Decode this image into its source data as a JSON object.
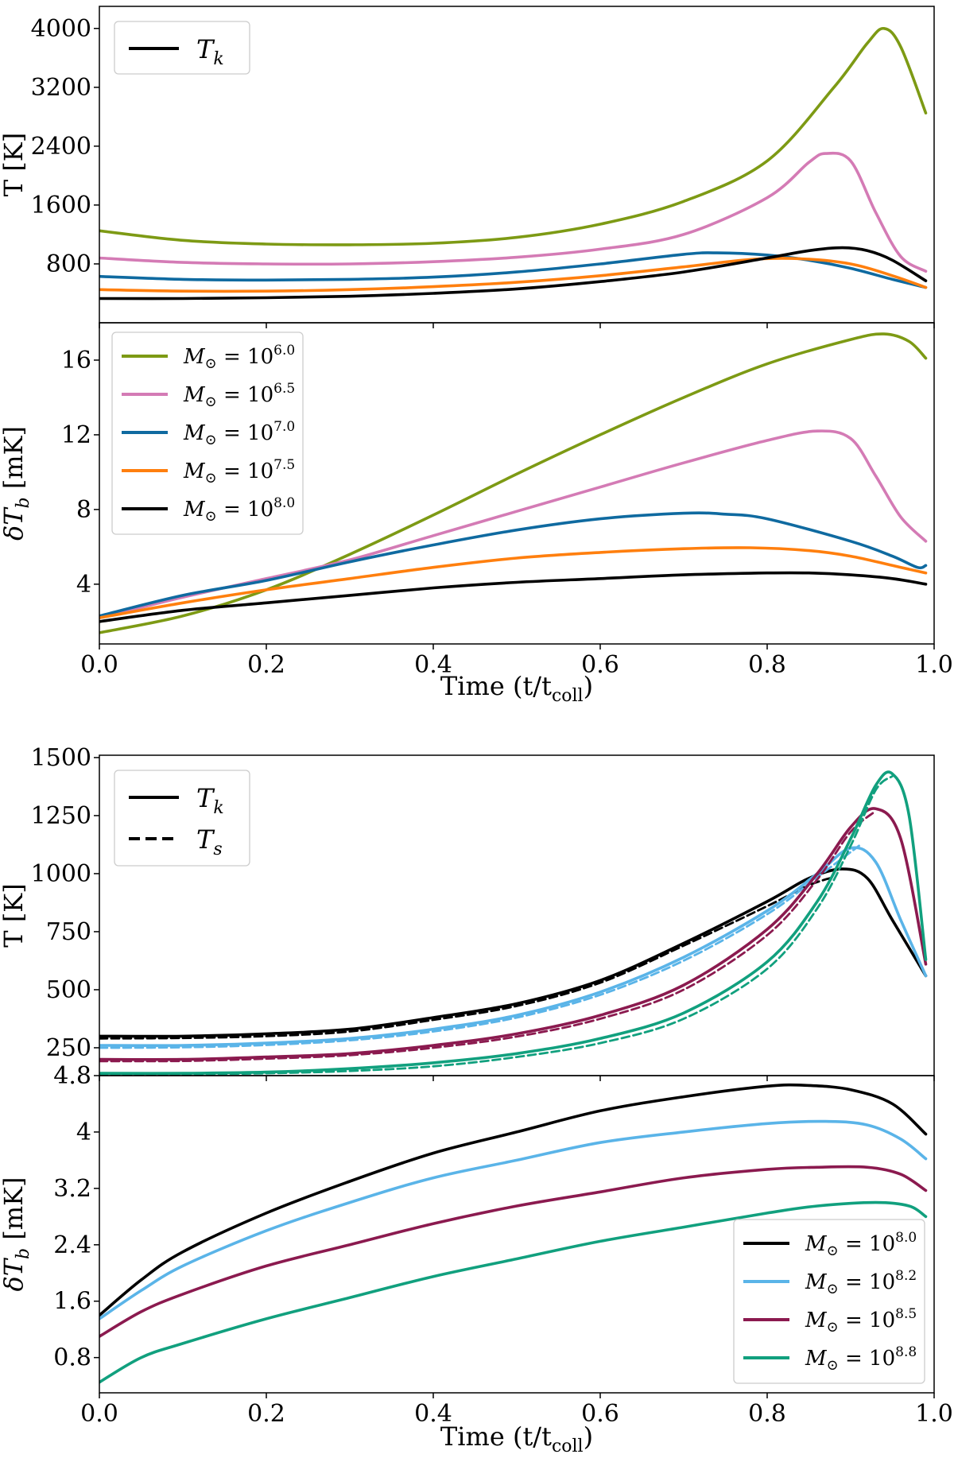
{
  "chart_data": [
    {
      "type": "line",
      "panel": "figure-1-top",
      "ylabel": "T [K]",
      "ylim": [
        0,
        4300
      ],
      "yticks": [
        800,
        1600,
        2400,
        3200,
        4000
      ],
      "xlim": [
        0,
        1
      ],
      "legend": {
        "position": "top-left",
        "entries": [
          {
            "label": "T",
            "subscript": "k",
            "style": "solid"
          }
        ]
      },
      "series": [
        {
          "name": "M⊙ = 10^6.0",
          "color": "#7d9a14",
          "x": [
            0,
            0.1,
            0.2,
            0.3,
            0.4,
            0.5,
            0.6,
            0.7,
            0.8,
            0.88,
            0.92,
            0.94,
            0.96,
            0.99
          ],
          "values": [
            1250,
            1120,
            1070,
            1060,
            1080,
            1160,
            1340,
            1650,
            2200,
            3200,
            3800,
            4000,
            3750,
            2850
          ]
        },
        {
          "name": "M⊙ = 10^6.5",
          "color": "#d47bb5",
          "x": [
            0,
            0.1,
            0.2,
            0.3,
            0.4,
            0.5,
            0.6,
            0.7,
            0.8,
            0.85,
            0.87,
            0.9,
            0.93,
            0.96,
            0.99
          ],
          "values": [
            880,
            820,
            800,
            800,
            830,
            890,
            1000,
            1200,
            1700,
            2180,
            2300,
            2200,
            1500,
            900,
            700
          ]
        },
        {
          "name": "M⊙ = 10^7.0",
          "color": "#0f6aa0",
          "x": [
            0,
            0.1,
            0.2,
            0.3,
            0.4,
            0.5,
            0.6,
            0.7,
            0.74,
            0.8,
            0.85,
            0.9,
            0.95,
            0.99
          ],
          "values": [
            630,
            590,
            580,
            590,
            620,
            690,
            800,
            930,
            950,
            920,
            850,
            740,
            590,
            480
          ]
        },
        {
          "name": "M⊙ = 10^7.5",
          "color": "#ff7f0e",
          "x": [
            0,
            0.1,
            0.2,
            0.3,
            0.4,
            0.5,
            0.6,
            0.7,
            0.78,
            0.84,
            0.9,
            0.95,
            0.99
          ],
          "values": [
            450,
            430,
            430,
            450,
            490,
            550,
            640,
            760,
            860,
            870,
            800,
            640,
            480
          ]
        },
        {
          "name": "M⊙ = 10^8.0",
          "color": "#000000",
          "x": [
            0,
            0.1,
            0.2,
            0.3,
            0.4,
            0.5,
            0.6,
            0.7,
            0.8,
            0.85,
            0.89,
            0.92,
            0.95,
            0.99
          ],
          "values": [
            330,
            330,
            340,
            360,
            400,
            460,
            560,
            690,
            880,
            980,
            1020,
            980,
            850,
            570
          ]
        }
      ]
    },
    {
      "type": "line",
      "panel": "figure-1-bottom",
      "ylabel": "δT_b [mK]",
      "xlabel": "Time (t/t_coll)",
      "ylim": [
        0.8,
        18
      ],
      "yticks": [
        4,
        8,
        12,
        16
      ],
      "xlim": [
        0,
        1
      ],
      "xticks": [
        0.0,
        0.2,
        0.4,
        0.6,
        0.8,
        1.0
      ],
      "legend": {
        "position": "top-left"
      },
      "series": [
        {
          "name": "M⊙ = 10^6.0",
          "base": "M",
          "sub": "⊙",
          "exp": "6.0",
          "color": "#7d9a14",
          "x": [
            0,
            0.1,
            0.2,
            0.3,
            0.4,
            0.5,
            0.6,
            0.7,
            0.8,
            0.9,
            0.94,
            0.97,
            0.99
          ],
          "values": [
            1.4,
            2.3,
            3.7,
            5.6,
            7.7,
            9.9,
            12.0,
            14.0,
            15.8,
            17.1,
            17.4,
            17.0,
            16.1
          ]
        },
        {
          "name": "M⊙ = 10^6.5",
          "base": "M",
          "sub": "⊙",
          "exp": "6.5",
          "color": "#d47bb5",
          "x": [
            0,
            0.1,
            0.2,
            0.3,
            0.4,
            0.5,
            0.6,
            0.7,
            0.8,
            0.86,
            0.9,
            0.93,
            0.96,
            0.99
          ],
          "values": [
            2.2,
            3.3,
            4.3,
            5.3,
            6.6,
            7.9,
            9.2,
            10.5,
            11.7,
            12.2,
            11.8,
            9.8,
            7.6,
            6.3
          ]
        },
        {
          "name": "M⊙ = 10^7.0",
          "base": "M",
          "sub": "⊙",
          "exp": "7.0",
          "color": "#0f6aa0",
          "x": [
            0,
            0.1,
            0.2,
            0.3,
            0.4,
            0.5,
            0.6,
            0.7,
            0.75,
            0.8,
            0.9,
            0.95,
            0.98,
            0.99
          ],
          "values": [
            2.3,
            3.4,
            4.2,
            5.2,
            6.1,
            6.9,
            7.5,
            7.8,
            7.75,
            7.5,
            6.3,
            5.5,
            4.9,
            5.0
          ]
        },
        {
          "name": "M⊙ = 10^7.5",
          "base": "M",
          "sub": "⊙",
          "exp": "7.5",
          "color": "#ff7f0e",
          "x": [
            0,
            0.1,
            0.2,
            0.3,
            0.4,
            0.5,
            0.6,
            0.7,
            0.78,
            0.85,
            0.9,
            0.95,
            0.99
          ],
          "values": [
            2.2,
            3.0,
            3.7,
            4.3,
            4.9,
            5.4,
            5.7,
            5.9,
            5.95,
            5.8,
            5.5,
            5.0,
            4.6
          ]
        },
        {
          "name": "M⊙ = 10^8.0",
          "base": "M",
          "sub": "⊙",
          "exp": "8.0",
          "color": "#000000",
          "x": [
            0,
            0.1,
            0.2,
            0.3,
            0.4,
            0.5,
            0.6,
            0.7,
            0.8,
            0.85,
            0.9,
            0.95,
            0.99
          ],
          "values": [
            2.0,
            2.6,
            3.0,
            3.4,
            3.8,
            4.1,
            4.3,
            4.5,
            4.6,
            4.6,
            4.5,
            4.3,
            4.0
          ]
        }
      ]
    },
    {
      "type": "line",
      "panel": "figure-2-top",
      "ylabel": "T [K]",
      "ylim": [
        130,
        1510
      ],
      "yticks": [
        250,
        500,
        750,
        1000,
        1250,
        1500
      ],
      "xlim": [
        0,
        1
      ],
      "legend": {
        "position": "top-left",
        "entries": [
          {
            "label": "T",
            "subscript": "k",
            "style": "solid"
          },
          {
            "label": "T",
            "subscript": "s",
            "style": "dashed"
          }
        ]
      },
      "series": [
        {
          "name": "M⊙ = 10^8.0 (T_k)",
          "color": "#000000",
          "style": "solid",
          "x": [
            0,
            0.1,
            0.2,
            0.3,
            0.4,
            0.5,
            0.6,
            0.7,
            0.8,
            0.85,
            0.89,
            0.92,
            0.95,
            0.99
          ],
          "values": [
            300,
            300,
            310,
            330,
            380,
            440,
            540,
            700,
            880,
            980,
            1020,
            980,
            800,
            560
          ]
        },
        {
          "name": "M⊙ = 10^8.0 (T_s)",
          "color": "#000000",
          "style": "dashed",
          "x": [
            0,
            0.1,
            0.2,
            0.3,
            0.4,
            0.5,
            0.6,
            0.7,
            0.8,
            0.85,
            0.88
          ],
          "values": [
            290,
            292,
            300,
            320,
            370,
            430,
            530,
            690,
            860,
            950,
            985
          ]
        },
        {
          "name": "M⊙ = 10^8.2 (T_k)",
          "color": "#5ab4e8",
          "style": "solid",
          "x": [
            0,
            0.1,
            0.2,
            0.3,
            0.4,
            0.5,
            0.6,
            0.7,
            0.8,
            0.86,
            0.9,
            0.93,
            0.96,
            0.99
          ],
          "values": [
            260,
            260,
            270,
            290,
            330,
            390,
            490,
            640,
            840,
            1000,
            1110,
            1050,
            800,
            560
          ]
        },
        {
          "name": "M⊙ = 10^8.2 (T_s)",
          "color": "#5ab4e8",
          "style": "dashed",
          "x": [
            0,
            0.1,
            0.2,
            0.3,
            0.4,
            0.5,
            0.6,
            0.7,
            0.8,
            0.86,
            0.91
          ],
          "values": [
            250,
            252,
            262,
            282,
            320,
            380,
            478,
            625,
            825,
            985,
            1120
          ]
        },
        {
          "name": "M⊙ = 10^8.5 (T_k)",
          "color": "#8b1a4f",
          "style": "solid",
          "x": [
            0,
            0.1,
            0.2,
            0.3,
            0.4,
            0.5,
            0.6,
            0.7,
            0.8,
            0.86,
            0.9,
            0.93,
            0.96,
            0.99
          ],
          "values": [
            200,
            200,
            210,
            225,
            260,
            310,
            390,
            520,
            760,
            1000,
            1200,
            1280,
            1150,
            610
          ]
        },
        {
          "name": "M⊙ = 10^8.5 (T_s)",
          "color": "#8b1a4f",
          "style": "dashed",
          "x": [
            0,
            0.1,
            0.2,
            0.3,
            0.4,
            0.5,
            0.6,
            0.7,
            0.8,
            0.86,
            0.9,
            0.93
          ],
          "values": [
            192,
            193,
            203,
            218,
            250,
            298,
            375,
            500,
            735,
            975,
            1180,
            1270
          ]
        },
        {
          "name": "M⊙ = 10^8.8 (T_k)",
          "color": "#11a07e",
          "style": "solid",
          "x": [
            0,
            0.1,
            0.2,
            0.3,
            0.4,
            0.5,
            0.6,
            0.7,
            0.8,
            0.86,
            0.9,
            0.93,
            0.95,
            0.97,
            0.99
          ],
          "values": [
            140,
            140,
            145,
            160,
            185,
            225,
            290,
            400,
            620,
            880,
            1150,
            1380,
            1430,
            1250,
            630
          ]
        },
        {
          "name": "M⊙ = 10^8.8 (T_s)",
          "color": "#11a07e",
          "style": "dashed",
          "x": [
            0,
            0.1,
            0.2,
            0.3,
            0.4,
            0.5,
            0.6,
            0.7,
            0.8,
            0.86,
            0.9,
            0.93,
            0.95
          ],
          "values": [
            135,
            136,
            140,
            150,
            170,
            210,
            270,
            375,
            590,
            850,
            1120,
            1360,
            1420
          ]
        }
      ]
    },
    {
      "type": "line",
      "panel": "figure-2-bottom",
      "ylabel": "δT_b [mK]",
      "xlabel": "Time (t/t_coll)",
      "ylim": [
        0.3,
        4.8
      ],
      "yticks": [
        0.8,
        1.6,
        2.4,
        3.2,
        4.0,
        4.8
      ],
      "xlim": [
        0,
        1
      ],
      "xticks": [
        0.0,
        0.2,
        0.4,
        0.6,
        0.8,
        1.0
      ],
      "legend": {
        "position": "bottom-right"
      },
      "series": [
        {
          "name": "M⊙ = 10^8.0",
          "base": "M",
          "sub": "⊙",
          "exp": "8.0",
          "color": "#000000",
          "x": [
            0,
            0.05,
            0.1,
            0.2,
            0.3,
            0.4,
            0.5,
            0.6,
            0.7,
            0.8,
            0.85,
            0.9,
            0.95,
            0.99
          ],
          "values": [
            1.4,
            1.9,
            2.3,
            2.85,
            3.3,
            3.7,
            4.0,
            4.3,
            4.5,
            4.65,
            4.66,
            4.6,
            4.4,
            3.97
          ]
        },
        {
          "name": "M⊙ = 10^8.2",
          "base": "M",
          "sub": "⊙",
          "exp": "8.2",
          "color": "#5ab4e8",
          "x": [
            0,
            0.05,
            0.1,
            0.2,
            0.3,
            0.4,
            0.5,
            0.6,
            0.7,
            0.8,
            0.87,
            0.92,
            0.96,
            0.99
          ],
          "values": [
            1.35,
            1.75,
            2.1,
            2.6,
            3.0,
            3.35,
            3.6,
            3.85,
            4.0,
            4.12,
            4.15,
            4.1,
            3.9,
            3.62
          ]
        },
        {
          "name": "M⊙ = 10^8.5",
          "base": "M",
          "sub": "⊙",
          "exp": "8.5",
          "color": "#8b1a4f",
          "x": [
            0,
            0.05,
            0.1,
            0.2,
            0.3,
            0.4,
            0.5,
            0.6,
            0.7,
            0.8,
            0.86,
            0.92,
            0.96,
            0.99
          ],
          "values": [
            1.1,
            1.45,
            1.7,
            2.1,
            2.4,
            2.7,
            2.95,
            3.15,
            3.35,
            3.47,
            3.5,
            3.5,
            3.4,
            3.17
          ]
        },
        {
          "name": "M⊙ = 10^8.8",
          "base": "M",
          "sub": "⊙",
          "exp": "8.8",
          "color": "#11a07e",
          "x": [
            0,
            0.05,
            0.1,
            0.2,
            0.3,
            0.4,
            0.5,
            0.6,
            0.7,
            0.8,
            0.86,
            0.93,
            0.97,
            0.99
          ],
          "values": [
            0.45,
            0.8,
            1.0,
            1.35,
            1.65,
            1.95,
            2.2,
            2.45,
            2.65,
            2.85,
            2.95,
            3.0,
            2.95,
            2.8
          ]
        }
      ]
    }
  ]
}
